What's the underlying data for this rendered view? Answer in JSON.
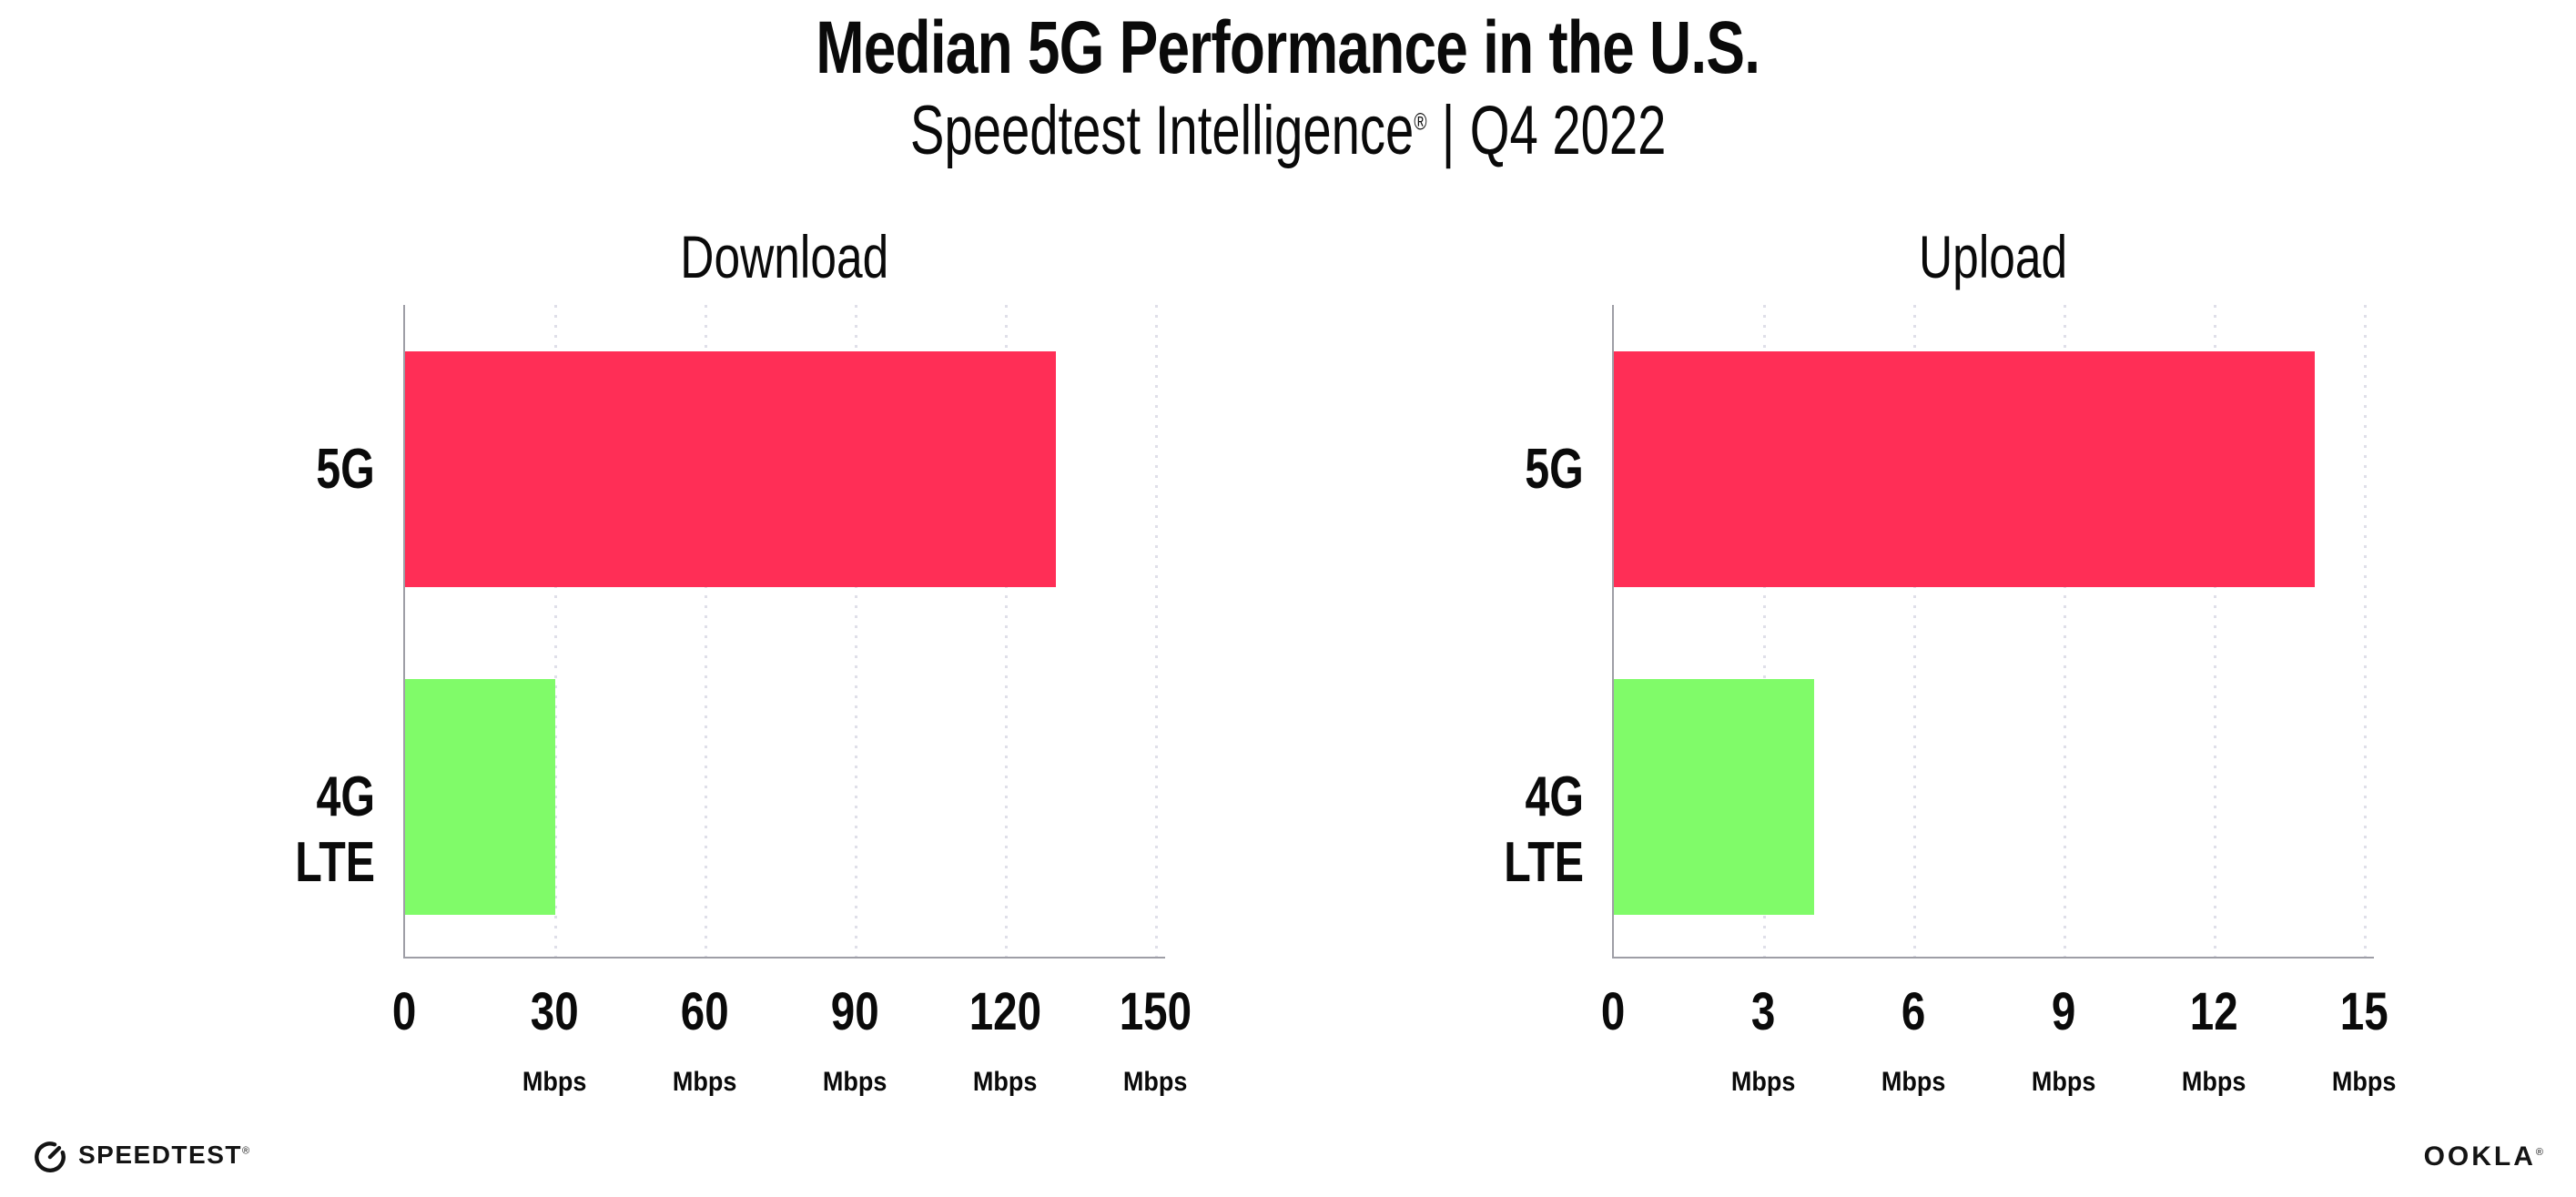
{
  "header": {
    "title": "Median 5G Performance in the U.S.",
    "subtitle_brand": "Speedtest Intelligence",
    "subtitle_reg": "®",
    "subtitle_separator": "|",
    "subtitle_period": "Q4 2022"
  },
  "chart_data": [
    {
      "type": "bar",
      "orientation": "horizontal",
      "title": "Download",
      "categories": [
        "5G",
        "4G LTE"
      ],
      "values": [
        130,
        30
      ],
      "unit": "Mbps",
      "xlim": [
        0,
        150
      ],
      "xticks": [
        0,
        30,
        60,
        90,
        120,
        150
      ],
      "bar_colors": [
        "#FF2E56",
        "#80FB69"
      ],
      "grid": "vertical-dotted",
      "legend": "none"
    },
    {
      "type": "bar",
      "orientation": "horizontal",
      "title": "Upload",
      "categories": [
        "5G",
        "4G LTE"
      ],
      "values": [
        14,
        4
      ],
      "unit": "Mbps",
      "xlim": [
        0,
        15
      ],
      "xticks": [
        0,
        3,
        6,
        9,
        12,
        15
      ],
      "bar_colors": [
        "#FF2E56",
        "#80FB69"
      ],
      "grid": "vertical-dotted",
      "legend": "none"
    }
  ],
  "footer": {
    "speedtest_text": "SPEEDTEST",
    "speedtest_reg": "®",
    "ookla_text": "OOKLA",
    "ookla_reg": "®"
  },
  "colors": {
    "bar_5g": "#FF2E56",
    "bar_4g_lte": "#80FB69",
    "axis_line": "#9E9EA6",
    "gridline_dots": "#DFDFE9",
    "text": "#0A0A0A"
  }
}
